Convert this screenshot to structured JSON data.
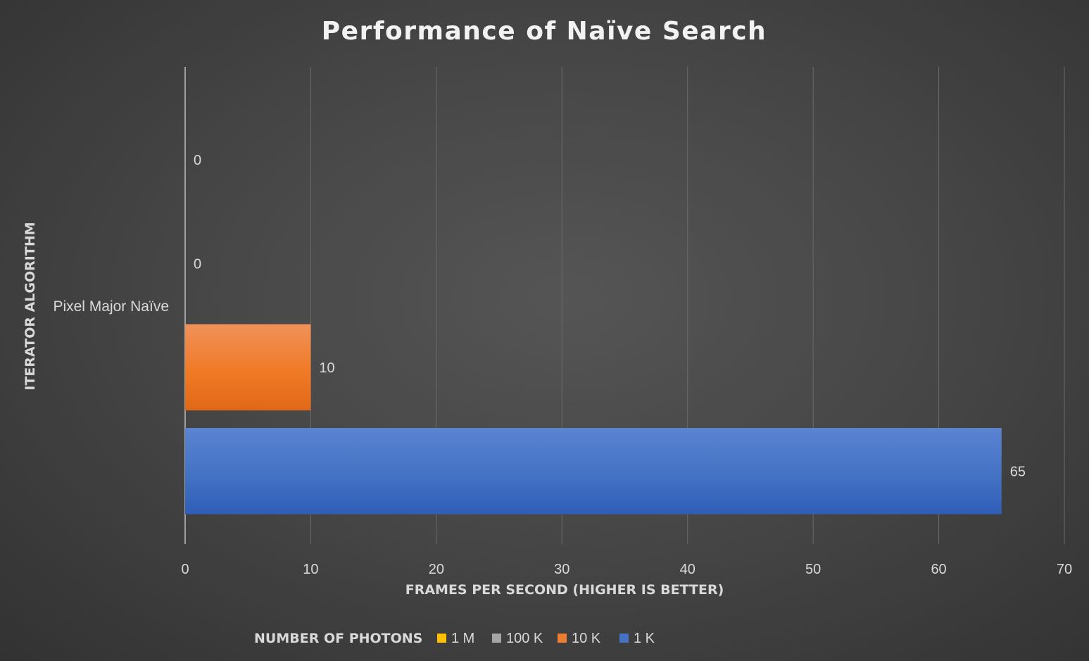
{
  "chart_data": {
    "type": "bar",
    "orientation": "horizontal",
    "title": "Performance of Naïve Search",
    "xlabel": "FRAMES PER SECOND (HIGHER IS BETTER)",
    "ylabel": "ITERATOR ALGORITHM",
    "categories": [
      "Pixel Major Naïve"
    ],
    "xlim": [
      0,
      70
    ],
    "x_ticks": [
      0,
      10,
      20,
      30,
      40,
      50,
      60,
      70
    ],
    "grid": true,
    "legend_title": "NUMBER OF PHOTONS",
    "legend_position": "bottom",
    "series": [
      {
        "name": "1 M",
        "values": [
          0
        ],
        "color": "#ffc000"
      },
      {
        "name": "100 K",
        "values": [
          0
        ],
        "color": "#a5a5a5"
      },
      {
        "name": "10 K",
        "values": [
          10
        ],
        "color": "#ed7d31"
      },
      {
        "name": "1 K",
        "values": [
          65
        ],
        "color": "#4472c4"
      }
    ]
  }
}
